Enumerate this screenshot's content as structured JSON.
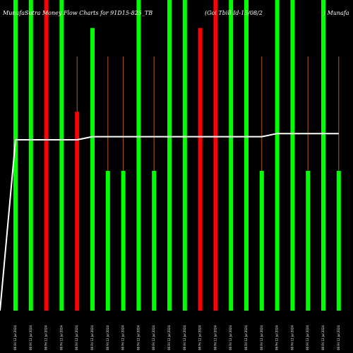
{
  "chart_data": {
    "type": "bar",
    "title_left": "MunafaSutra Money Flow  Charts for 91D15-825_TB",
    "title_mid": "(Goi Tbill  Id-15/08/2",
    "title_right": ") Munafa",
    "ylim": [
      0,
      100
    ],
    "colors": {
      "up": "#00ff00",
      "down": "#ff0000",
      "line": "#ffffff",
      "wick": "#b35a1a",
      "background": "#000000"
    },
    "bars": [
      {
        "label": "06 Fri 12 Jul 2024",
        "value": 100,
        "color": "up"
      },
      {
        "label": "06 Fri 12 Jul 2024",
        "value": 100,
        "color": "up"
      },
      {
        "label": "06 Fri 12 Jul 2024",
        "value": 100,
        "color": "down"
      },
      {
        "label": "06 Fri 12 Jul 2024",
        "value": 100,
        "color": "up"
      },
      {
        "label": "06 Fri 12 Jul 2024",
        "value": 64,
        "color": "down",
        "wick": 100
      },
      {
        "label": "06 Fri 12 Jul 2024",
        "value": 91,
        "color": "up"
      },
      {
        "label": "06 Fri 12 Jul 2024",
        "value": 45,
        "color": "up",
        "wick": 100
      },
      {
        "label": "06 Fri 12 Jul 2024",
        "value": 45,
        "color": "up",
        "wick": 100
      },
      {
        "label": "06 Fri 12 Jul 2024",
        "value": 100,
        "color": "up"
      },
      {
        "label": "06 Fri 12 Jul 2024",
        "value": 45,
        "color": "up",
        "wick": 100
      },
      {
        "label": "06 Fri 12 Jul 2024",
        "value": 100,
        "color": "up"
      },
      {
        "label": "06 Fri 12 Jul 2024",
        "value": 100,
        "color": "up"
      },
      {
        "label": "06 Fri 12 Jul 2024",
        "value": 91,
        "color": "down",
        "wick": 100
      },
      {
        "label": "06 Fri 12 Jul 2024",
        "value": 100,
        "color": "down"
      },
      {
        "label": "06 Fri 12 Jul 2024",
        "value": 100,
        "color": "up"
      },
      {
        "label": "06 Fri 12 Jul 2024",
        "value": 100,
        "color": "up"
      },
      {
        "label": "06 Fri 12 Jul 2024",
        "value": 45,
        "color": "up",
        "wick": 100
      },
      {
        "label": "06 Fri 12 Jul 2024",
        "value": 100,
        "color": "up"
      },
      {
        "label": "06 Fri 12 Jul 2024",
        "value": 100,
        "color": "up"
      },
      {
        "label": "06 Fri 12 Jul 2024",
        "value": 45,
        "color": "up",
        "wick": 100
      },
      {
        "label": "06 Fri 12 Jul 2024",
        "value": 100,
        "color": "up"
      },
      {
        "label": "06 Fri 12 Jul 2024",
        "value": 45,
        "color": "up",
        "wick": 100
      }
    ],
    "line": [
      0,
      55,
      55,
      55,
      55,
      55,
      56,
      56,
      56,
      56,
      56,
      56,
      56,
      56,
      56,
      56,
      56,
      56,
      57,
      57,
      57,
      57,
      57
    ]
  }
}
